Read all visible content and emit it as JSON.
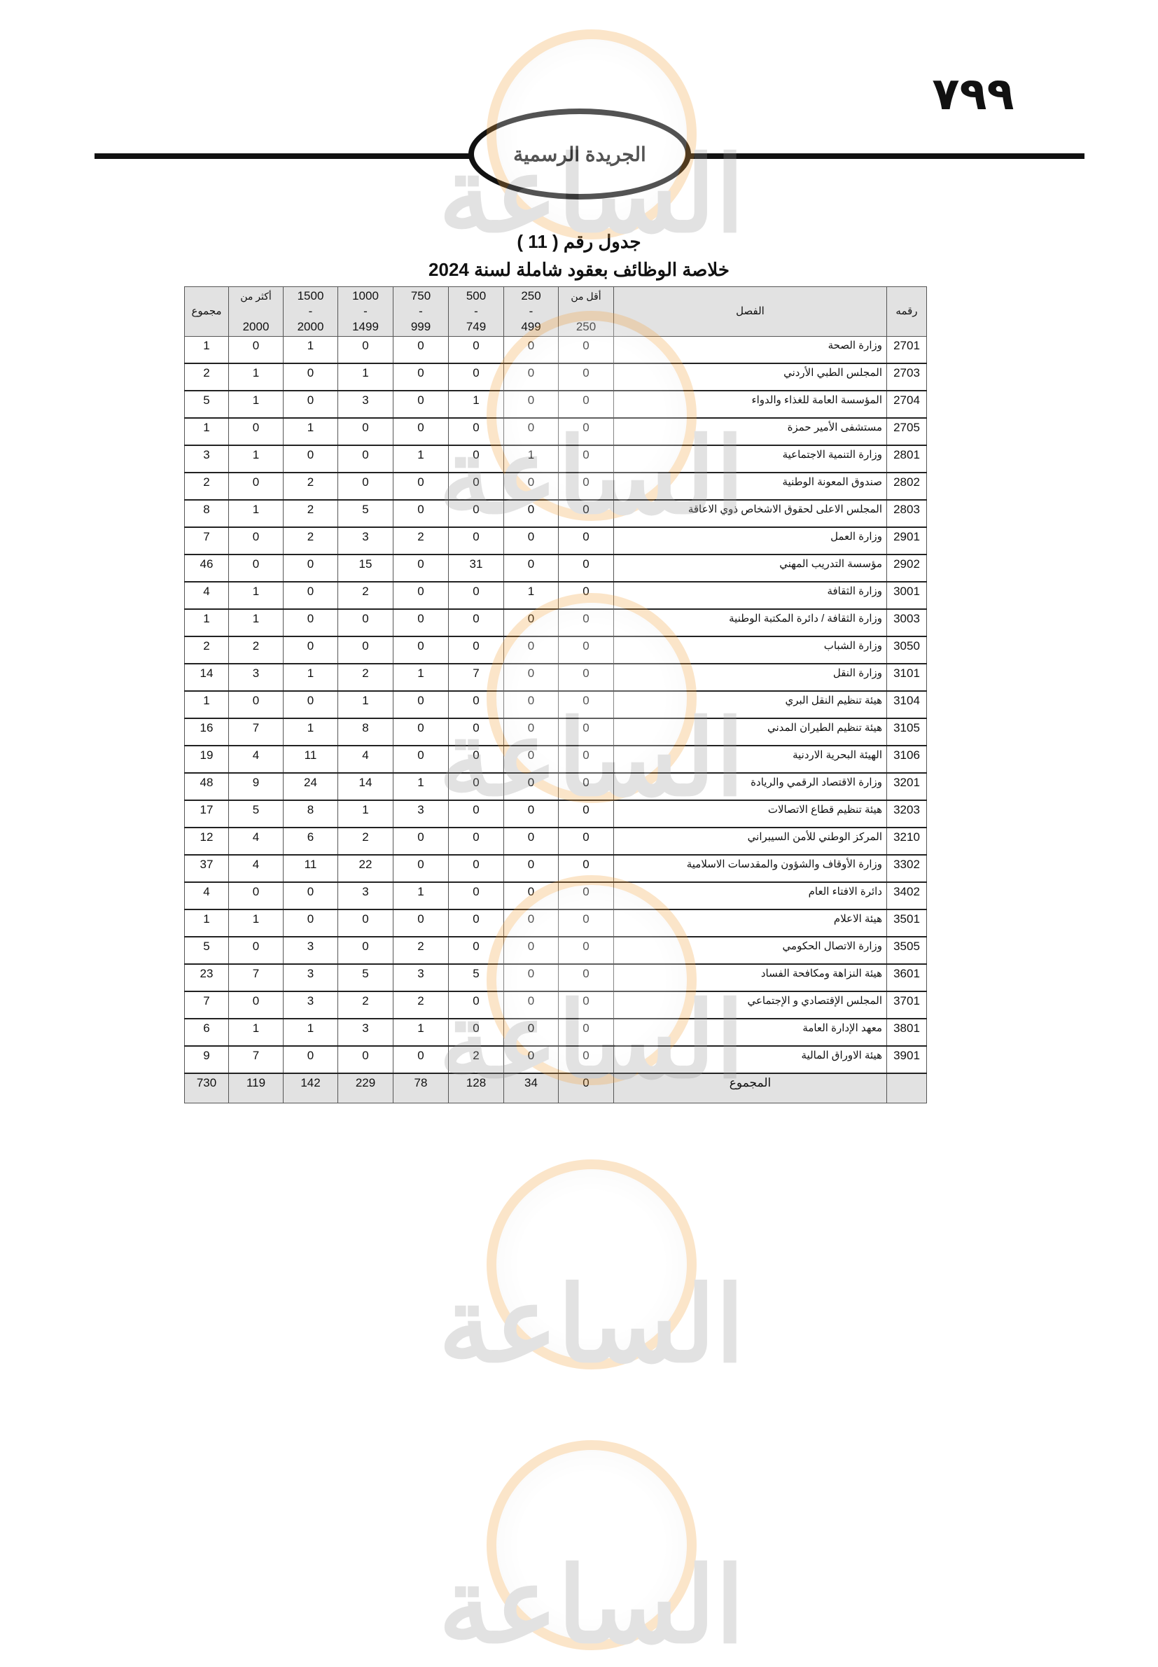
{
  "page_number": "٧٩٩",
  "header": {
    "gazette_title": "الجريدة الرسمية"
  },
  "watermark": {
    "brand": "مدار الساعة الإخبارية",
    "colors": {
      "ring": "#f4a340",
      "text": "#999999"
    }
  },
  "table_title": "جدول رقم ( 11 )",
  "table_subtitle": "خلاصة الوظائف بعقود شاملة لسنة 2024",
  "columns": {
    "code": "رقمه",
    "chapter": "الفصل",
    "lt250": {
      "l1": "أقل من",
      "l3": "250"
    },
    "r250": {
      "l1": "250",
      "l2": "-",
      "l3": "499"
    },
    "r500": {
      "l1": "500",
      "l2": "-",
      "l3": "749"
    },
    "r750": {
      "l1": "750",
      "l2": "-",
      "l3": "999"
    },
    "r1000": {
      "l1": "1000",
      "l2": "-",
      "l3": "1499"
    },
    "r1500": {
      "l1": "1500",
      "l2": "-",
      "l3": "2000"
    },
    "gt2000": {
      "l1": "أكثر من",
      "l3": "2000"
    },
    "total": "مجموع"
  },
  "rows": [
    {
      "code": "2701",
      "name": "وزارة الصحة",
      "values": [
        "0",
        "0",
        "0",
        "0",
        "0",
        "1",
        "0",
        "1"
      ]
    },
    {
      "code": "2703",
      "name": "المجلس الطبي الأردني",
      "values": [
        "0",
        "0",
        "0",
        "0",
        "1",
        "0",
        "1",
        "2"
      ]
    },
    {
      "code": "2704",
      "name": "المؤسسة العامة للغذاء والدواء",
      "values": [
        "0",
        "0",
        "1",
        "0",
        "3",
        "0",
        "1",
        "5"
      ]
    },
    {
      "code": "2705",
      "name": "مستشفى الأمير حمزة",
      "values": [
        "0",
        "0",
        "0",
        "0",
        "0",
        "1",
        "0",
        "1"
      ]
    },
    {
      "code": "2801",
      "name": "وزارة التنمية الاجتماعية",
      "values": [
        "0",
        "1",
        "0",
        "1",
        "0",
        "0",
        "1",
        "3"
      ]
    },
    {
      "code": "2802",
      "name": "صندوق المعونة الوطنية",
      "values": [
        "0",
        "0",
        "0",
        "0",
        "0",
        "2",
        "0",
        "2"
      ]
    },
    {
      "code": "2803",
      "name": "المجلس الاعلى لحقوق الاشخاص ذوي الاعاقة",
      "values": [
        "0",
        "0",
        "0",
        "0",
        "5",
        "2",
        "1",
        "8"
      ]
    },
    {
      "code": "2901",
      "name": "وزارة العمل",
      "values": [
        "0",
        "0",
        "0",
        "2",
        "3",
        "2",
        "0",
        "7"
      ]
    },
    {
      "code": "2902",
      "name": "مؤسسة التدريب المهني",
      "values": [
        "0",
        "0",
        "31",
        "0",
        "15",
        "0",
        "0",
        "46"
      ]
    },
    {
      "code": "3001",
      "name": "وزارة الثقافة",
      "values": [
        "0",
        "1",
        "0",
        "0",
        "2",
        "0",
        "1",
        "4"
      ]
    },
    {
      "code": "3003",
      "name": "وزارة الثقافة / دائرة المكتبة الوطنية",
      "values": [
        "0",
        "0",
        "0",
        "0",
        "0",
        "0",
        "1",
        "1"
      ]
    },
    {
      "code": "3050",
      "name": "وزارة الشباب",
      "values": [
        "0",
        "0",
        "0",
        "0",
        "0",
        "0",
        "2",
        "2"
      ]
    },
    {
      "code": "3101",
      "name": "وزارة النقل",
      "values": [
        "0",
        "0",
        "7",
        "1",
        "2",
        "1",
        "3",
        "14"
      ]
    },
    {
      "code": "3104",
      "name": "هيئة تنظيم النقل البري",
      "values": [
        "0",
        "0",
        "0",
        "0",
        "1",
        "0",
        "0",
        "1"
      ]
    },
    {
      "code": "3105",
      "name": "هيئة تنظيم الطيران المدني",
      "values": [
        "0",
        "0",
        "0",
        "0",
        "8",
        "1",
        "7",
        "16"
      ]
    },
    {
      "code": "3106",
      "name": "الهيئة البحرية الاردنية",
      "values": [
        "0",
        "0",
        "0",
        "0",
        "4",
        "11",
        "4",
        "19"
      ]
    },
    {
      "code": "3201",
      "name": "وزارة الاقتصاد الرقمي والريادة",
      "values": [
        "0",
        "0",
        "0",
        "1",
        "14",
        "24",
        "9",
        "48"
      ]
    },
    {
      "code": "3203",
      "name": "هيئة تنظيم قطاع الاتصالات",
      "values": [
        "0",
        "0",
        "0",
        "3",
        "1",
        "8",
        "5",
        "17"
      ]
    },
    {
      "code": "3210",
      "name": "المركز الوطني للأمن السيبراني",
      "values": [
        "0",
        "0",
        "0",
        "0",
        "2",
        "6",
        "4",
        "12"
      ]
    },
    {
      "code": "3302",
      "name": "وزارة الأوقاف والشؤون والمقدسات الاسلامية",
      "values": [
        "0",
        "0",
        "0",
        "0",
        "22",
        "11",
        "4",
        "37"
      ]
    },
    {
      "code": "3402",
      "name": "دائرة الافتاء العام",
      "values": [
        "0",
        "0",
        "0",
        "1",
        "3",
        "0",
        "0",
        "4"
      ]
    },
    {
      "code": "3501",
      "name": "هيئة الاعلام",
      "values": [
        "0",
        "0",
        "0",
        "0",
        "0",
        "0",
        "1",
        "1"
      ]
    },
    {
      "code": "3505",
      "name": "وزارة الاتصال الحكومي",
      "values": [
        "0",
        "0",
        "0",
        "2",
        "0",
        "3",
        "0",
        "5"
      ]
    },
    {
      "code": "3601",
      "name": "هيئة النزاهة ومكافحة الفساد",
      "values": [
        "0",
        "0",
        "5",
        "3",
        "5",
        "3",
        "7",
        "23"
      ]
    },
    {
      "code": "3701",
      "name": "المجلس الإقتصادي و الإجتماعي",
      "values": [
        "0",
        "0",
        "0",
        "2",
        "2",
        "3",
        "0",
        "7"
      ]
    },
    {
      "code": "3801",
      "name": "معهد الإدارة العامة",
      "values": [
        "0",
        "0",
        "0",
        "1",
        "3",
        "1",
        "1",
        "6"
      ]
    },
    {
      "code": "3901",
      "name": "هيئة الاوراق المالية",
      "values": [
        "0",
        "0",
        "2",
        "0",
        "0",
        "0",
        "7",
        "9"
      ]
    }
  ],
  "totals": {
    "label": "المجموع",
    "values": [
      "0",
      "34",
      "128",
      "78",
      "229",
      "142",
      "119",
      "730"
    ]
  }
}
